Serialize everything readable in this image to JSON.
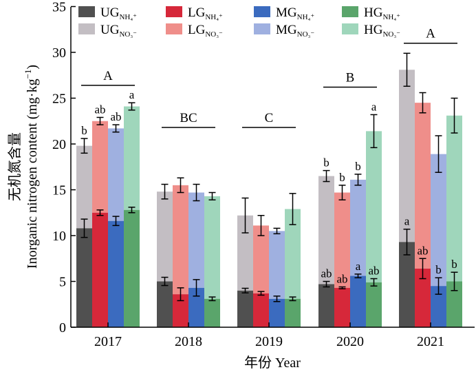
{
  "chart_data": {
    "type": "bar",
    "categories": [
      "2017",
      "2018",
      "2019",
      "2020",
      "2021"
    ],
    "xlabel": "年份 Year",
    "ylabel": "无机氮含量",
    "ylabel2": "Inorganic nitrogen content (mg·kg",
    "ylabel2_sup": "−1",
    "ylabel2_end": ")",
    "ylim": [
      0,
      35
    ],
    "yticks": [
      0,
      5,
      10,
      15,
      20,
      25,
      30,
      35
    ],
    "stacked": true,
    "series": [
      {
        "group": "UG",
        "name": "UG",
        "sub": "NH₄⁺",
        "bottom_color": "#505050",
        "top_color": "#c3bec3",
        "nh4": [
          10.8,
          5.0,
          4.0,
          4.7,
          9.3
        ],
        "nh4_err": [
          1.0,
          0.45,
          0.25,
          0.3,
          1.4
        ],
        "no3_total": [
          19.8,
          14.8,
          12.2,
          16.5,
          28.1
        ],
        "total_err": [
          0.8,
          0.8,
          1.9,
          0.6,
          1.8
        ],
        "nh4_letters": [
          "",
          "",
          "",
          "ab",
          "a"
        ],
        "total_letters": [
          "b",
          "",
          "",
          "b",
          ""
        ]
      },
      {
        "group": "LG",
        "name": "LG",
        "sub": "NH₄⁺",
        "bottom_color": "#d6283a",
        "top_color": "#ef8e8a",
        "nh4": [
          12.5,
          3.6,
          3.7,
          4.3,
          6.4
        ],
        "nh4_err": [
          0.3,
          0.7,
          0.2,
          0.1,
          1.1
        ],
        "no3_total": [
          22.5,
          15.5,
          11.1,
          14.7,
          24.5
        ],
        "total_err": [
          0.4,
          0.8,
          1.1,
          0.8,
          1.1
        ],
        "nh4_letters": [
          "",
          "",
          "",
          "ab",
          "ab"
        ],
        "total_letters": [
          "ab",
          "",
          "",
          "b",
          ""
        ]
      },
      {
        "group": "MG",
        "name": "MG",
        "sub": "NH₄⁺",
        "bottom_color": "#3b6bbf",
        "top_color": "#9fb0e0",
        "nh4": [
          11.6,
          4.3,
          3.1,
          5.6,
          4.5
        ],
        "nh4_err": [
          0.5,
          0.9,
          0.3,
          0.2,
          0.9
        ],
        "no3_total": [
          21.7,
          14.7,
          10.5,
          16.1,
          18.9
        ],
        "total_err": [
          0.4,
          0.9,
          0.3,
          0.6,
          2.0
        ],
        "nh4_letters": [
          "",
          "",
          "",
          "a",
          "b"
        ],
        "total_letters": [
          "ab",
          "",
          "",
          "b",
          ""
        ]
      },
      {
        "group": "HG",
        "name": "HG",
        "sub": "NH₄⁺",
        "bottom_color": "#5aa56b",
        "top_color": "#9fd6bb",
        "nh4": [
          12.8,
          3.1,
          3.1,
          4.9,
          5.0
        ],
        "nh4_err": [
          0.3,
          0.2,
          0.2,
          0.4,
          1.0
        ],
        "no3_total": [
          24.1,
          14.3,
          12.9,
          21.4,
          23.1
        ],
        "total_err": [
          0.4,
          0.4,
          1.7,
          1.8,
          1.9
        ],
        "nh4_letters": [
          "",
          "",
          "",
          "ab",
          "b"
        ],
        "total_letters": [
          "a",
          "",
          "",
          "a",
          ""
        ]
      }
    ],
    "year_letters": [
      "A",
      "BC",
      "C",
      "B",
      "A"
    ],
    "year_letter_y": [
      26.4,
      21.8,
      21.8,
      26.2,
      31.0
    ],
    "legend": [
      {
        "name": "UG",
        "sub": "NH₄⁺",
        "color": "#505050"
      },
      {
        "name": "LG",
        "sub": "NH₄⁺",
        "color": "#d6283a"
      },
      {
        "name": "MG",
        "sub": "NH₄⁺",
        "color": "#3b6bbf"
      },
      {
        "name": "HG",
        "sub": "NH₄⁺",
        "color": "#5aa56b"
      },
      {
        "name": "UG",
        "sub": "NO₃⁻",
        "color": "#c3bec3"
      },
      {
        "name": "LG",
        "sub": "NO₃⁻",
        "color": "#ef8e8a"
      },
      {
        "name": "MG",
        "sub": "NO₃⁻",
        "color": "#9fb0e0"
      },
      {
        "name": "HG",
        "sub": "NO₃⁻",
        "color": "#9fd6bb"
      }
    ],
    "legend_placement": "top",
    "grid": false
  }
}
